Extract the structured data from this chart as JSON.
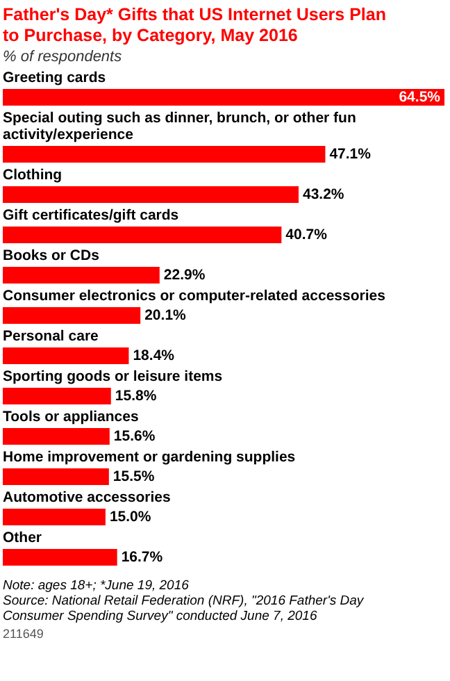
{
  "chart_data": {
    "type": "bar",
    "orientation": "horizontal",
    "title": "Father's Day* Gifts that US Internet Users Plan to Purchase, by Category, May 2016",
    "subtitle": "% of respondents",
    "categories": [
      "Greeting cards",
      "Special outing such as dinner, brunch, or other fun activity/experience",
      "Clothing",
      "Gift certificates/gift cards",
      "Books or CDs",
      "Consumer electronics or computer-related accessories",
      "Personal care",
      "Sporting goods or leisure items",
      "Tools or appliances",
      "Home improvement or gardening supplies",
      "Automotive accessories",
      "Other"
    ],
    "values": [
      64.5,
      47.1,
      43.2,
      40.7,
      22.9,
      20.1,
      18.4,
      15.8,
      15.6,
      15.5,
      15.0,
      16.7
    ],
    "value_labels": [
      "64.5%",
      "47.1%",
      "43.2%",
      "40.7%",
      "22.9%",
      "20.1%",
      "18.4%",
      "15.8%",
      "15.6%",
      "15.5%",
      "15.0%",
      "16.7%"
    ],
    "color": "#ff0000",
    "annotations": [
      "Note: ages 18+; *June 19, 2016",
      "Source: National Retail Federation (NRF), \"2016 Father's Day Consumer Spending Survey\" conducted June 7, 2016",
      "211649"
    ]
  }
}
